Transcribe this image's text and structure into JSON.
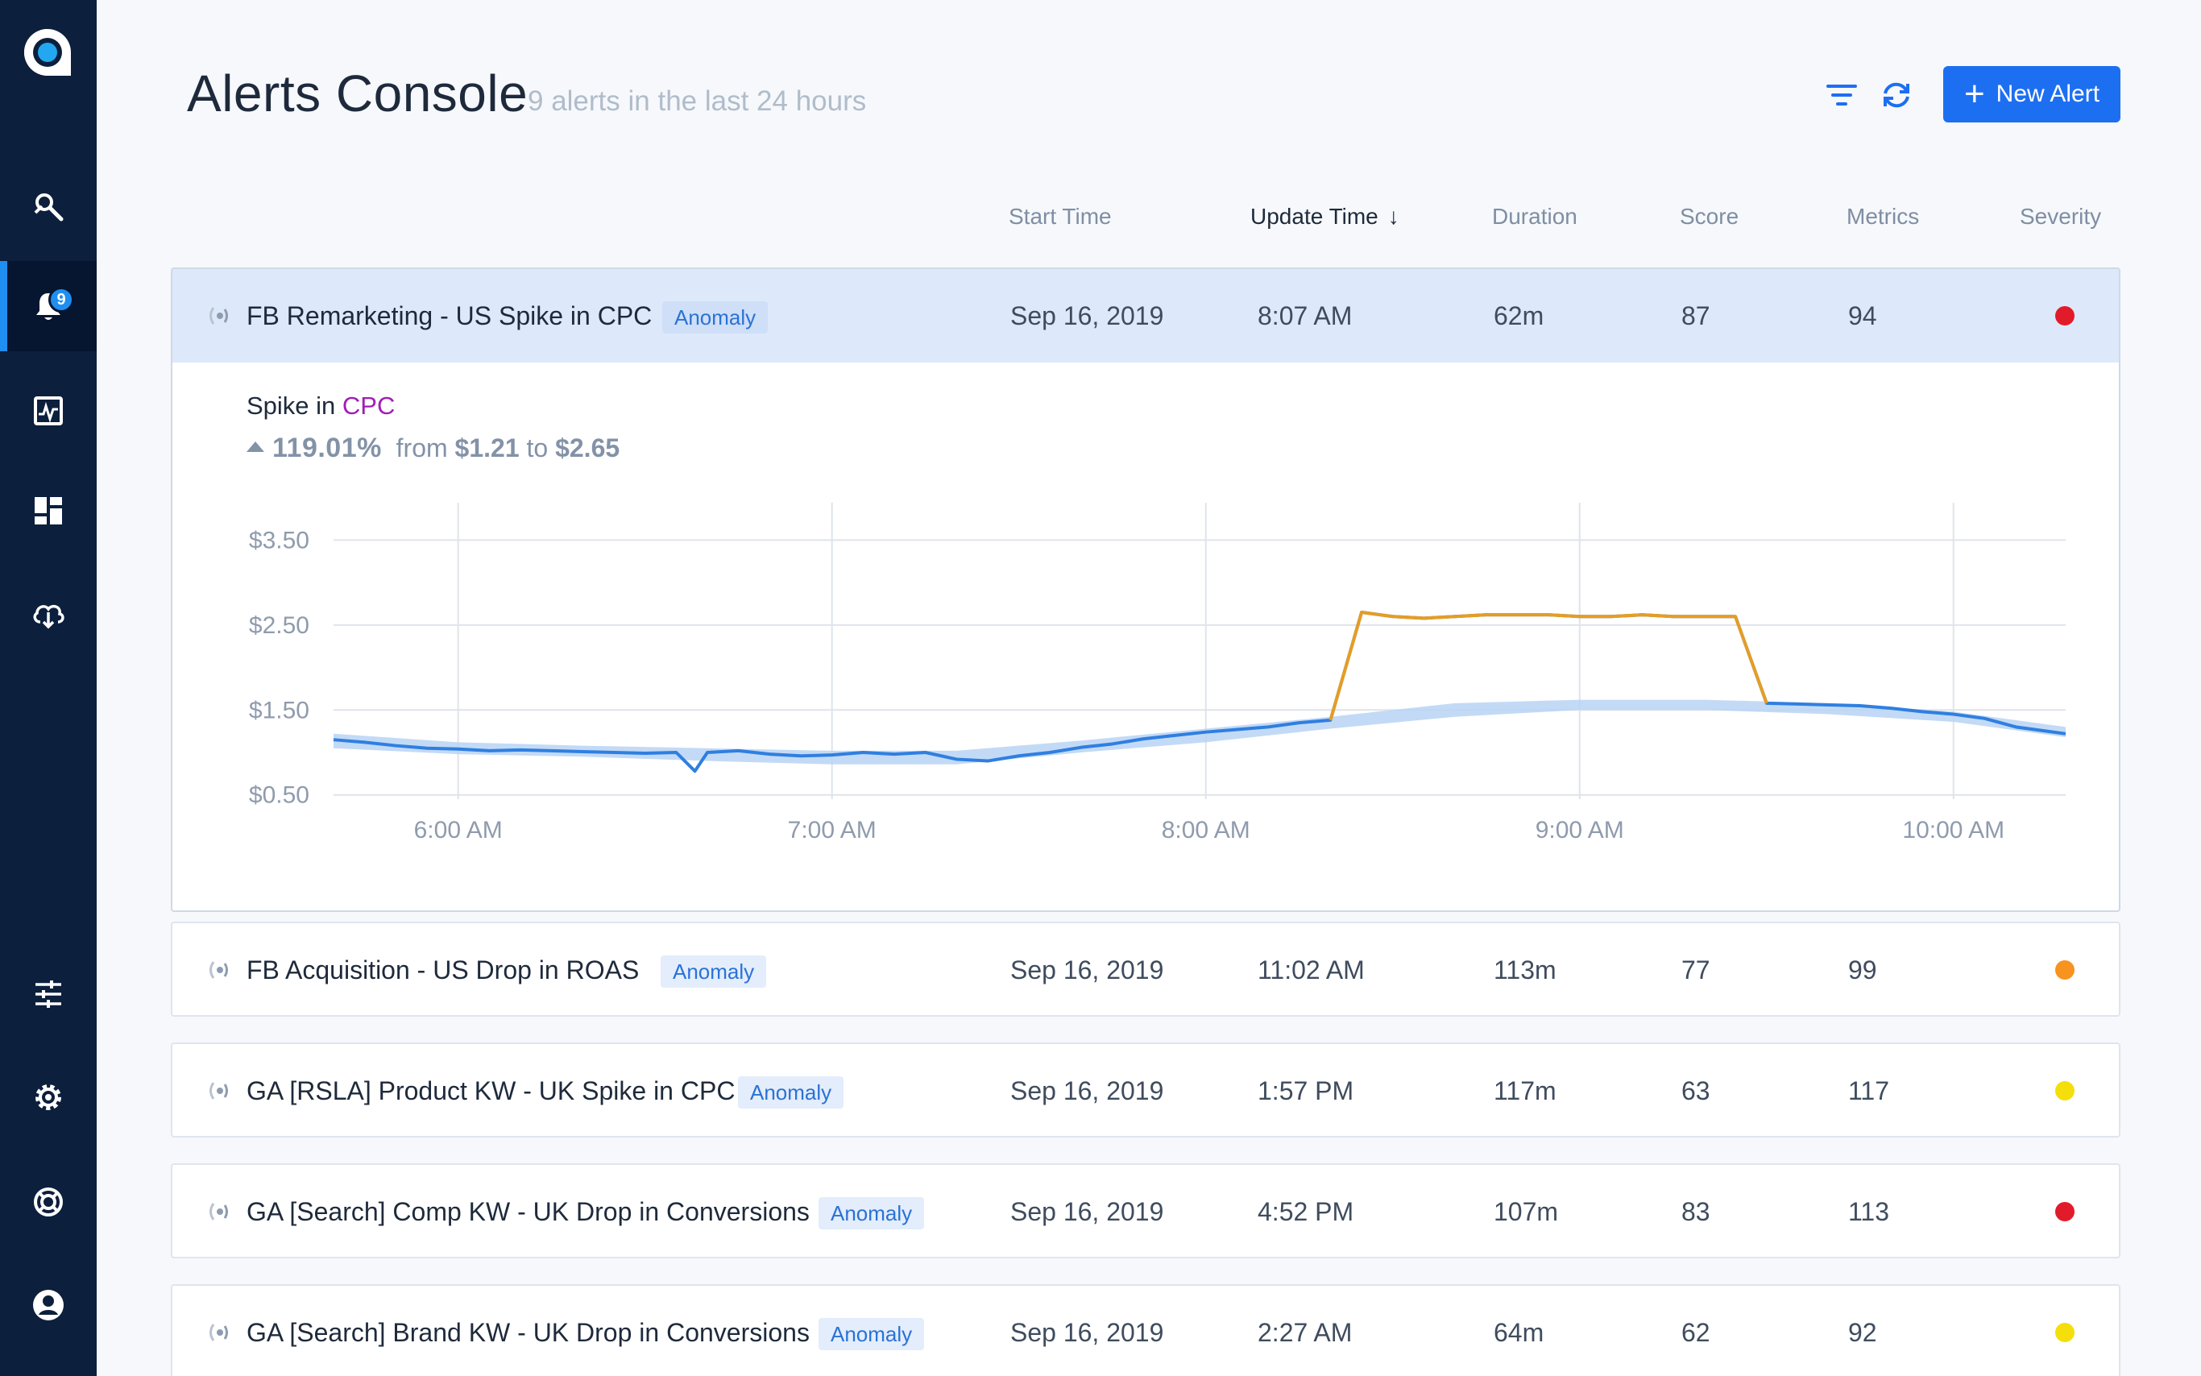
{
  "sidebar": {
    "logo": "logo-icon",
    "items": [
      {
        "name": "explore",
        "icon": "search-rocket-icon"
      },
      {
        "name": "alerts",
        "icon": "bell-icon",
        "badge": "9",
        "active": true
      },
      {
        "name": "monitors",
        "icon": "activity-chart-icon"
      },
      {
        "name": "dashboards",
        "icon": "dashboard-icon"
      },
      {
        "name": "data-sources",
        "icon": "cloud-download-icon"
      },
      {
        "name": "adjustments",
        "icon": "sliders-icon"
      },
      {
        "name": "settings",
        "icon": "gear-icon"
      },
      {
        "name": "help",
        "icon": "lifebuoy-icon"
      },
      {
        "name": "profile",
        "icon": "user-icon"
      }
    ]
  },
  "header": {
    "title": "Alerts Console",
    "subtitle": "9 alerts in the last 24 hours",
    "new_alert_label": "New Alert"
  },
  "columns": {
    "start_time": "Start Time",
    "update_time": "Update Time",
    "duration": "Duration",
    "score": "Score",
    "metrics": "Metrics",
    "severity": "Severity"
  },
  "colors": {
    "accent": "#1d6ff2",
    "sev_high": "#e21b2a",
    "sev_medium": "#f7931e",
    "sev_low": "#f5df0a"
  },
  "alerts": [
    {
      "name": "FB Remarketing - US Spike in CPC",
      "type": "Anomaly",
      "start": "Sep 16, 2019",
      "update": "8:07 AM",
      "duration": "62m",
      "score": "87",
      "metrics": "94",
      "severity": "high"
    },
    {
      "name": "FB Acquisition - US Drop in ROAS",
      "type": "Anomaly",
      "start": "Sep 16, 2019",
      "update": "11:02 AM",
      "duration": "113m",
      "score": "77",
      "metrics": "99",
      "severity": "medium"
    },
    {
      "name": "GA [RSLA] Product KW - UK Spike in CPC",
      "type": "Anomaly",
      "start": "Sep 16, 2019",
      "update": "1:57 PM",
      "duration": "117m",
      "score": "63",
      "metrics": "117",
      "severity": "low"
    },
    {
      "name": "GA [Search] Comp KW - UK Drop in Conversions",
      "type": "Anomaly",
      "start": "Sep 16, 2019",
      "update": "4:52 PM",
      "duration": "107m",
      "score": "83",
      "metrics": "113",
      "severity": "high"
    },
    {
      "name": "GA [Search] Brand KW - UK Drop in Conversions",
      "type": "Anomaly",
      "start": "Sep 16, 2019",
      "update": "2:27 AM",
      "duration": "64m",
      "score": "62",
      "metrics": "92",
      "severity": "low"
    }
  ],
  "detail": {
    "prefix": "Spike in",
    "metric": "CPC",
    "change_pct": "119.01%",
    "from_word": "from",
    "from_value": "$1.21",
    "to_word": "to",
    "to_value": "$2.65"
  },
  "chart_data": {
    "type": "line",
    "title": "",
    "xlabel": "",
    "ylabel": "",
    "x_ticks": [
      "6:00 AM",
      "7:00 AM",
      "8:00 AM",
      "9:00 AM",
      "10:00 AM"
    ],
    "y_ticks": [
      "$0.50",
      "$1.50",
      "$2.50",
      "$3.50"
    ],
    "y_tick_values": [
      0.5,
      1.5,
      2.5,
      3.5
    ],
    "ylim": [
      0.5,
      3.5
    ],
    "xlim_minutes": [
      -20,
      258
    ],
    "grid": true,
    "series": [
      {
        "role": "actual",
        "color": "#2f7fe0",
        "x_minutes": [
          -20,
          -15,
          -10,
          -5,
          0,
          5,
          10,
          15,
          20,
          25,
          30,
          35,
          38,
          40,
          45,
          50,
          55,
          60,
          65,
          70,
          75,
          80,
          85,
          90,
          95,
          100,
          105,
          110,
          115,
          120,
          125,
          130,
          135,
          140,
          145,
          150,
          155,
          160,
          165,
          170,
          175,
          180,
          185,
          190,
          195,
          200,
          205,
          210,
          215,
          220,
          225,
          230,
          235,
          240,
          245,
          250,
          255,
          258
        ],
        "values": [
          1.15,
          1.12,
          1.08,
          1.05,
          1.04,
          1.02,
          1.03,
          1.02,
          1.01,
          1.0,
          0.99,
          1.0,
          0.78,
          1.0,
          1.02,
          0.98,
          0.96,
          0.97,
          1.0,
          0.98,
          1.0,
          0.92,
          0.9,
          0.96,
          1.0,
          1.06,
          1.1,
          1.16,
          1.2,
          1.24,
          1.27,
          1.3,
          1.35,
          1.38,
          2.65,
          2.6,
          2.58,
          2.6,
          2.62,
          2.62,
          2.62,
          2.6,
          2.6,
          2.62,
          2.6,
          2.6,
          2.6,
          1.58,
          1.57,
          1.56,
          1.55,
          1.52,
          1.48,
          1.45,
          1.4,
          1.3,
          1.25,
          1.22
        ]
      },
      {
        "role": "expected-band",
        "color": "#b9d4f5",
        "x_minutes": [
          -20,
          0,
          20,
          40,
          60,
          80,
          100,
          120,
          140,
          160,
          180,
          200,
          220,
          240,
          258
        ],
        "lower": [
          1.05,
          0.98,
          0.95,
          0.9,
          0.86,
          0.86,
          1.0,
          1.12,
          1.28,
          1.42,
          1.5,
          1.5,
          1.45,
          1.36,
          1.18
        ],
        "upper": [
          1.22,
          1.12,
          1.08,
          1.05,
          1.02,
          1.02,
          1.14,
          1.28,
          1.42,
          1.58,
          1.62,
          1.62,
          1.58,
          1.48,
          1.3
        ]
      }
    ],
    "anomaly_color": "#e59d24"
  }
}
